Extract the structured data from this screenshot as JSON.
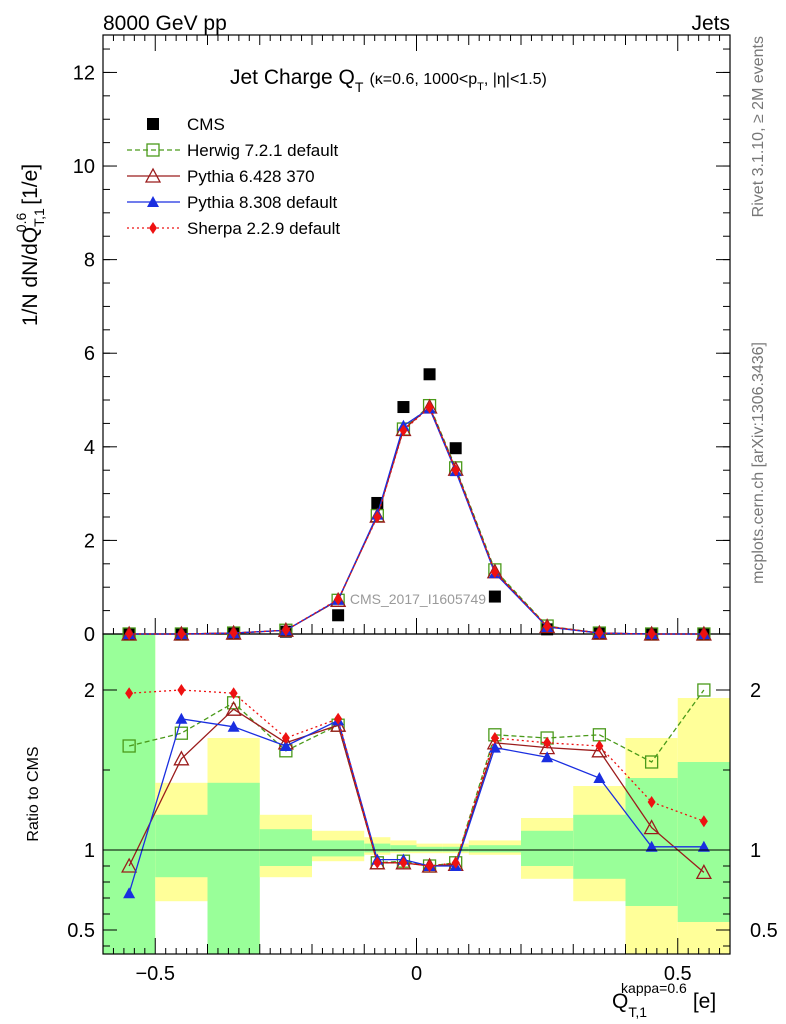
{
  "header": {
    "left": "8000 GeV pp",
    "right": "Jets"
  },
  "side_text": {
    "rivet": "Rivet 3.1.10, ≥ 2M events",
    "mcplots": "mcplots.cern.ch [arXiv:1306.3436]"
  },
  "watermark": "CMS_2017_I1605749",
  "chart_data": [
    {
      "type": "scatter",
      "panel": "main",
      "title_main": "Jet Charge Q",
      "title_sub": "T",
      "title_detail": "(κ=0.6, 1000<p",
      "title_detail_sub": "T",
      "title_detail_end": ", |η|<1.5)",
      "ylabel": "1/N dN/dQ",
      "ylabel_sub": "T,1",
      "ylabel_sup": "0.6",
      "ylabel_unit": "[1/e]",
      "ylim": [
        0,
        12.8
      ],
      "xlim": [
        -0.6,
        0.6
      ],
      "yticks": [
        0,
        2,
        4,
        6,
        8,
        10,
        12
      ],
      "yticklabels": [
        "0",
        "2",
        "4",
        "6",
        "8",
        "10",
        "12"
      ],
      "x": [
        -0.55,
        -0.45,
        -0.35,
        -0.25,
        -0.15,
        -0.075,
        -0.025,
        0.025,
        0.075,
        0.15,
        0.25,
        0.35,
        0.45,
        0.55
      ],
      "series": [
        {
          "name": "CMS",
          "color": "#000000",
          "marker": "square-filled",
          "values": [
            0.0,
            0.0,
            0.01,
            0.05,
            0.4,
            2.8,
            4.85,
            5.55,
            3.97,
            0.8,
            0.1,
            0.01,
            0.0,
            0.0
          ]
        },
        {
          "name": "Herwig 7.2.1 default",
          "color": "#4a9a1a",
          "marker": "square-open",
          "dash": "5,3",
          "values": [
            0.0,
            0.0,
            0.02,
            0.08,
            0.72,
            2.53,
            4.38,
            4.88,
            3.55,
            1.37,
            0.17,
            0.02,
            0.0,
            0.0
          ]
        },
        {
          "name": "Pythia 6.428 370",
          "color": "#9b1c1c",
          "marker": "triangle-open",
          "values": [
            0.0,
            0.0,
            0.02,
            0.08,
            0.72,
            2.52,
            4.37,
            4.85,
            3.52,
            1.33,
            0.16,
            0.02,
            0.0,
            0.0
          ]
        },
        {
          "name": "Pythia 8.308 default",
          "color": "#1a2ee0",
          "marker": "triangle-filled",
          "values": [
            0.0,
            0.0,
            0.02,
            0.08,
            0.73,
            2.55,
            4.45,
            4.82,
            3.48,
            1.3,
            0.15,
            0.02,
            0.0,
            0.0
          ]
        },
        {
          "name": "Sherpa 2.2.9 default",
          "color": "#ee1111",
          "marker": "diamond-filled",
          "dash": "2,3",
          "values": [
            0.0,
            0.0,
            0.02,
            0.08,
            0.74,
            2.5,
            4.35,
            4.84,
            3.5,
            1.32,
            0.16,
            0.02,
            0.0,
            0.0
          ]
        }
      ]
    },
    {
      "type": "scatter",
      "panel": "ratio",
      "ylabel": "Ratio to CMS",
      "xlabel": "Q",
      "xlabel_sub": "T,1",
      "xlabel_sup": "kappa=0.6",
      "xlabel_unit": "[e]",
      "ylim": [
        0.35,
        2.35
      ],
      "xlim": [
        -0.6,
        0.6
      ],
      "xticks": [
        -0.5,
        0,
        0.5
      ],
      "xticklabels": [
        "−0.5",
        "0",
        "0.5"
      ],
      "yticks": [
        0.5,
        1,
        2
      ],
      "yticklabels": [
        "0.5",
        "1",
        "2"
      ],
      "reference": 1,
      "bands": {
        "x_edges": [
          -0.6,
          -0.5,
          -0.4,
          -0.3,
          -0.2,
          -0.1,
          -0.05,
          0.0,
          0.05,
          0.1,
          0.2,
          0.3,
          0.4,
          0.5,
          0.6
        ],
        "yellow_low": [
          0.35,
          0.68,
          0.35,
          0.83,
          0.93,
          0.97,
          0.98,
          0.98,
          0.98,
          0.97,
          0.82,
          0.68,
          0.35,
          0.35
        ],
        "yellow_high": [
          2.35,
          1.42,
          1.7,
          1.22,
          1.12,
          1.08,
          1.06,
          1.04,
          1.04,
          1.06,
          1.2,
          1.4,
          1.7,
          1.95
        ],
        "green_low": [
          0.35,
          0.83,
          0.35,
          0.9,
          0.96,
          0.985,
          0.99,
          0.99,
          0.99,
          0.985,
          0.9,
          0.82,
          0.65,
          0.55
        ],
        "green_high": [
          2.35,
          1.22,
          1.42,
          1.13,
          1.06,
          1.04,
          1.03,
          1.02,
          1.02,
          1.03,
          1.12,
          1.22,
          1.45,
          1.55
        ]
      },
      "series": [
        {
          "name": "Herwig 7.2.1 default",
          "color": "#4a9a1a",
          "marker": "square-open",
          "dash": "5,3",
          "values": [
            1.65,
            1.73,
            1.92,
            1.62,
            1.78,
            0.92,
            0.93,
            0.9,
            0.92,
            1.72,
            1.7,
            1.72,
            1.55,
            2.0
          ]
        },
        {
          "name": "Pythia 6.428 370",
          "color": "#9b1c1c",
          "marker": "triangle-open",
          "values": [
            0.9,
            1.57,
            1.88,
            1.67,
            1.78,
            0.92,
            0.92,
            0.9,
            0.91,
            1.67,
            1.64,
            1.62,
            1.14,
            0.86
          ]
        },
        {
          "name": "Pythia 8.308 default",
          "color": "#1a2ee0",
          "marker": "triangle-filled",
          "values": [
            0.73,
            1.82,
            1.77,
            1.65,
            1.81,
            0.94,
            0.94,
            0.9,
            0.9,
            1.64,
            1.58,
            1.45,
            1.02,
            1.02
          ]
        },
        {
          "name": "Sherpa 2.2.9 default",
          "color": "#ee1111",
          "marker": "diamond-filled",
          "dash": "2,3",
          "values": [
            1.98,
            2.0,
            1.98,
            1.7,
            1.82,
            0.92,
            0.92,
            0.9,
            0.92,
            1.7,
            1.67,
            1.65,
            1.3,
            1.18
          ]
        }
      ]
    }
  ]
}
